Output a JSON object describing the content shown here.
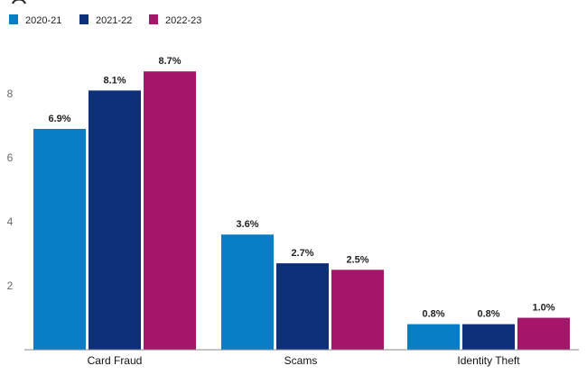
{
  "chart_data": {
    "type": "bar",
    "title": "",
    "xlabel": "",
    "ylabel": "",
    "categories": [
      "Card Fraud",
      "Scams",
      "Identity Theft"
    ],
    "series": [
      {
        "name": "2020-21",
        "color": "#0a7dc7",
        "values": [
          6.9,
          3.6,
          0.8
        ],
        "labels": [
          "6.9%",
          "3.6%",
          "0.8%"
        ]
      },
      {
        "name": "2021-22",
        "color": "#0e2f7a",
        "values": [
          8.1,
          2.7,
          0.8
        ],
        "labels": [
          "8.1%",
          "2.7%",
          "0.8%"
        ]
      },
      {
        "name": "2022-23",
        "color": "#a3166a",
        "values": [
          8.7,
          2.5,
          1.0
        ],
        "labels": [
          "8.7%",
          "2.5%",
          "1.0%"
        ]
      }
    ],
    "yticks": [
      2,
      4,
      6,
      8
    ],
    "ylim": [
      0,
      10
    ],
    "grid": false,
    "legend_position": "top-left"
  }
}
